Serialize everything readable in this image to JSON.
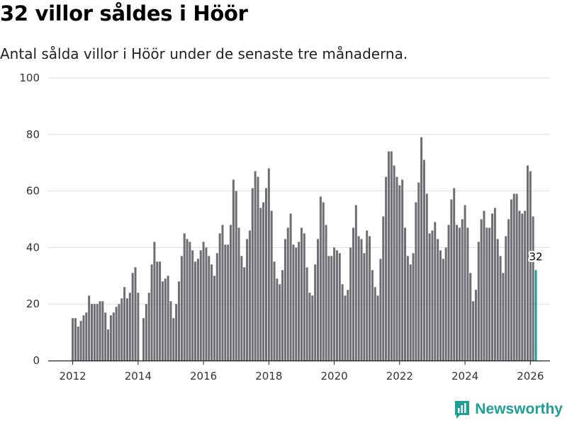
{
  "header": {
    "title": "32 villor såldes i Höör",
    "subtitle": "Antal sålda villor i Höör under de senaste tre månaderna."
  },
  "brand": {
    "name": "Newsworthy",
    "icon": "newsworthy-logo-icon",
    "color": "#1f9e96"
  },
  "colors": {
    "bar": "#6e6d72",
    "highlight": "#1a9e96",
    "grid": "#dddddd",
    "axis": "#222222"
  },
  "chart_data": {
    "type": "bar",
    "title": "32 villor såldes i Höör",
    "xlabel": "",
    "ylabel": "",
    "ylim": [
      0,
      100
    ],
    "yticks": [
      0,
      20,
      40,
      60,
      80,
      100
    ],
    "xlim": [
      2011.25,
      2026.6
    ],
    "xticks": [
      2012,
      2014,
      2016,
      2018,
      2020,
      2022,
      2024,
      2026
    ],
    "start": {
      "year": 2012,
      "month": 1
    },
    "values": [
      15,
      15,
      12,
      14,
      16,
      17,
      23,
      20,
      20,
      20,
      21,
      21,
      17,
      11,
      16,
      17,
      19,
      20,
      22,
      26,
      22,
      24,
      31,
      33,
      24,
      0,
      15,
      20,
      24,
      34,
      42,
      35,
      35,
      28,
      29,
      30,
      21,
      15,
      20,
      28,
      37,
      45,
      43,
      42,
      39,
      35,
      36,
      39,
      42,
      40,
      37,
      34,
      30,
      38,
      45,
      48,
      41,
      41,
      48,
      64,
      60,
      47,
      37,
      33,
      43,
      46,
      61,
      67,
      65,
      54,
      56,
      61,
      68,
      53,
      35,
      29,
      27,
      32,
      43,
      47,
      52,
      41,
      40,
      42,
      47,
      45,
      33,
      24,
      23,
      34,
      43,
      58,
      56,
      48,
      37,
      37,
      40,
      39,
      38,
      27,
      23,
      25,
      40,
      47,
      55,
      44,
      43,
      38,
      46,
      44,
      32,
      26,
      23,
      36,
      51,
      65,
      74,
      74,
      69,
      65,
      62,
      64,
      47,
      37,
      34,
      38,
      56,
      63,
      79,
      71,
      59,
      45,
      46,
      49,
      43,
      39,
      36,
      40,
      48,
      57,
      61,
      48,
      47,
      50,
      55,
      47,
      31,
      21,
      25,
      42,
      50,
      53,
      47,
      47,
      52,
      54,
      43,
      37,
      31,
      44,
      50,
      57,
      59,
      59,
      53,
      52,
      53,
      69,
      67,
      51,
      32
    ],
    "highlight_last": true,
    "data_label": {
      "text": "32",
      "value": 32
    }
  }
}
